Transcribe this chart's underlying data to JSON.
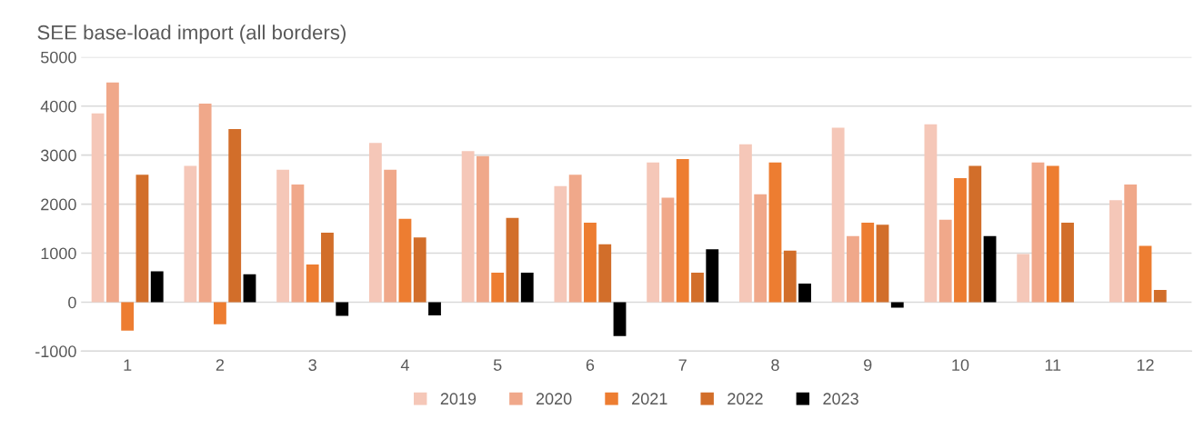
{
  "chart_data": {
    "type": "bar",
    "title": "SEE base-load import (all borders)",
    "categories": [
      "1",
      "2",
      "3",
      "4",
      "5",
      "6",
      "7",
      "8",
      "9",
      "10",
      "11",
      "12"
    ],
    "series": [
      {
        "name": "2019",
        "color": "#f5c7b8",
        "values": [
          3850,
          2780,
          2700,
          3250,
          3080,
          2370,
          2850,
          3220,
          3560,
          3630,
          980,
          2080
        ]
      },
      {
        "name": "2020",
        "color": "#f0a88a",
        "values": [
          4480,
          4050,
          2400,
          2700,
          2980,
          2600,
          2130,
          2200,
          1350,
          1680,
          2850,
          2400
        ]
      },
      {
        "name": "2021",
        "color": "#ed7d31",
        "values": [
          -580,
          -450,
          770,
          1700,
          600,
          1620,
          2920,
          2850,
          1620,
          2530,
          2780,
          1150
        ]
      },
      {
        "name": "2022",
        "color": "#d26e2a",
        "values": [
          2600,
          3530,
          1420,
          1320,
          1720,
          1180,
          600,
          1050,
          1580,
          2780,
          1620,
          250
        ]
      },
      {
        "name": "2023",
        "color": "#000000",
        "values": [
          630,
          570,
          -280,
          -270,
          600,
          -690,
          1080,
          380,
          -110,
          1350,
          null,
          null
        ]
      }
    ],
    "ylim": [
      -1000,
      5000
    ],
    "yticks": [
      -1000,
      0,
      1000,
      2000,
      3000,
      4000,
      5000
    ],
    "grid": "y",
    "legend": "bottom"
  }
}
